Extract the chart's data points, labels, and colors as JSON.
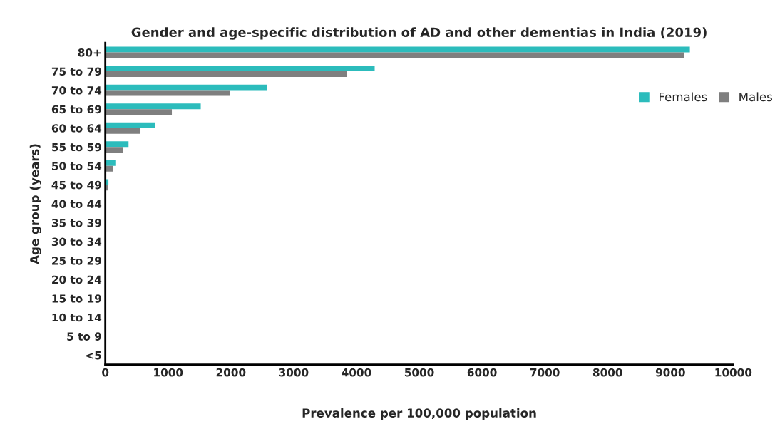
{
  "chart_data": {
    "type": "bar",
    "orientation": "horizontal",
    "title": "Gender and age-specific distribution of AD and other dementias in India (2019)",
    "xlabel": "Prevalence per 100,000 population",
    "ylabel": "Age group (years)",
    "categories": [
      "80+",
      "75 to 79",
      "70 to 74",
      "65 to 69",
      "60 to 64",
      "55 to 59",
      "50 to 54",
      "45 to 49",
      "40 to 44",
      "35 to 39",
      "30 to 34",
      "25 to 29",
      "20 to 24",
      "15 to 19",
      "10 to 14",
      "5 to 9",
      "<5"
    ],
    "series": [
      {
        "name": "Females",
        "color": "#2cbcbc",
        "values": [
          9310,
          4290,
          2580,
          1520,
          790,
          370,
          160,
          50,
          0,
          0,
          0,
          0,
          0,
          0,
          0,
          0,
          0
        ]
      },
      {
        "name": "Males",
        "color": "#7f7f7f",
        "values": [
          9220,
          3850,
          1990,
          1060,
          560,
          280,
          120,
          40,
          0,
          0,
          0,
          0,
          0,
          0,
          0,
          0,
          0
        ]
      }
    ],
    "xlim": [
      0,
      10000
    ],
    "xticks": [
      0,
      1000,
      2000,
      3000,
      4000,
      5000,
      6000,
      7000,
      8000,
      9000,
      10000
    ],
    "grid": false,
    "legend": "top right"
  }
}
